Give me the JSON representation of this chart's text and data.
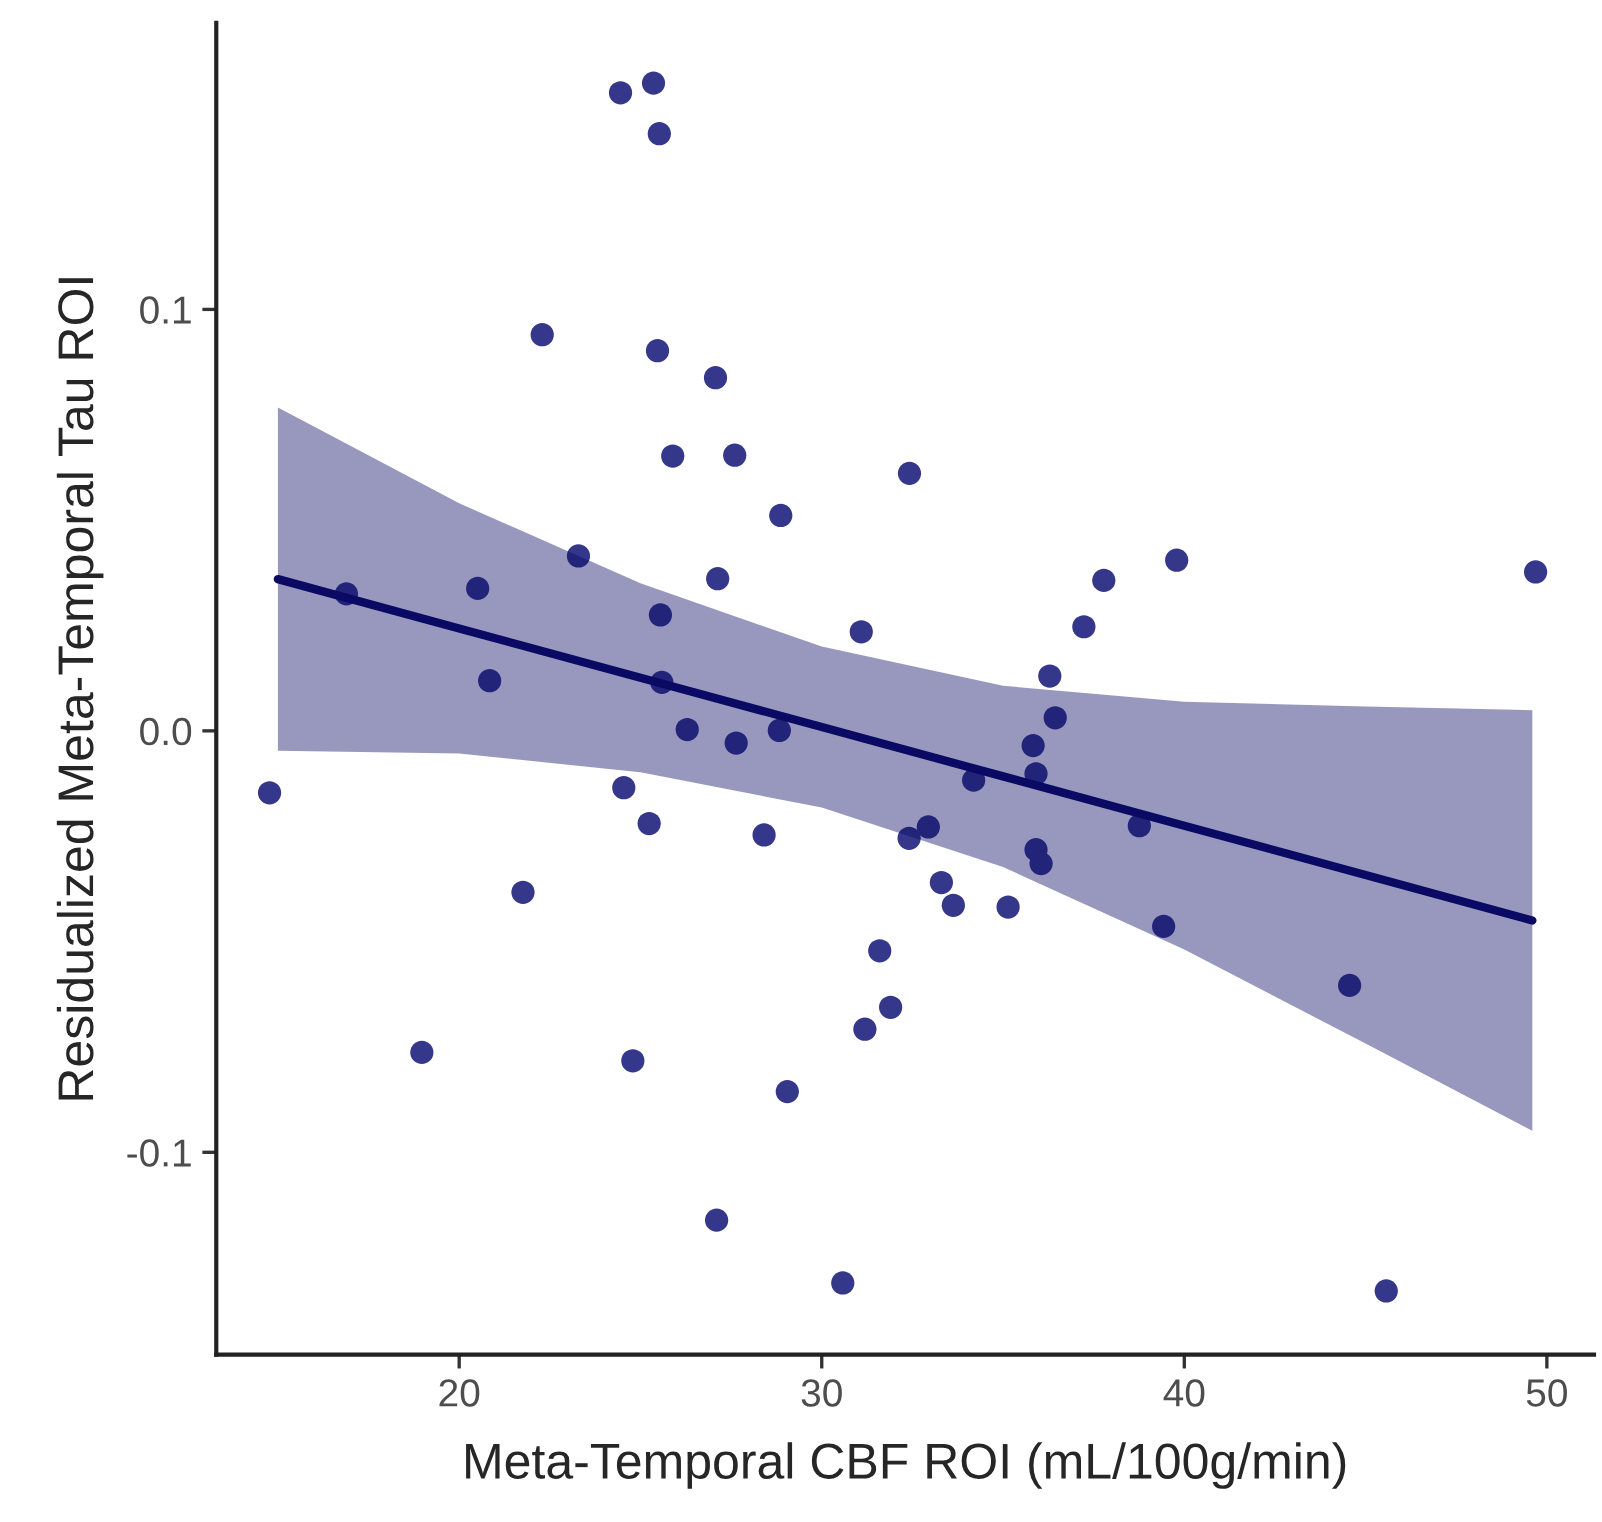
{
  "chart_data": {
    "type": "scatter",
    "xlabel": "Meta-Temporal CBF ROI (mL/100g/min)",
    "ylabel": "Residualized Meta-Temporal Tau ROI",
    "xlim": [
      13.3,
      51.3
    ],
    "xticks": [
      20,
      30,
      40,
      50
    ],
    "ylim": [
      -0.148,
      0.168
    ],
    "yticks": [
      {
        "value": -0.1,
        "label": "-0.1"
      },
      {
        "value": 0,
        "label": "0.0"
      },
      0.1
    ],
    "grid": false,
    "marker": "circle",
    "series": [
      {
        "color": "#35388a",
        "x": [
          24.45,
          25.36,
          25.52,
          22.29,
          25.47,
          27.07,
          25.89,
          27.6,
          28.87,
          23.29,
          20.51,
          16.89,
          27.13,
          25.55,
          31.09,
          20.84,
          25.59,
          26.29,
          27.64,
          28.83,
          14.77,
          24.54,
          25.24,
          28.41,
          21.76,
          31.6,
          31.19,
          18.97,
          24.79,
          29.05,
          27.1,
          30.58,
          32.42,
          39.79,
          49.69,
          37.78,
          37.23,
          36.29,
          36.44,
          35.83,
          35.91,
          34.19,
          32.94,
          32.41,
          35.91,
          36.05,
          38.76,
          33.3,
          33.63,
          35.14,
          39.43,
          44.56,
          31.9,
          45.57
        ],
        "values": [
          0.1514,
          0.1537,
          0.1417,
          0.094,
          0.0902,
          0.0838,
          0.0652,
          0.0654,
          0.0511,
          0.0415,
          0.0338,
          0.0325,
          0.0361,
          0.0275,
          0.0235,
          0.0119,
          0.0115,
          0.0003,
          -0.0029,
          0.0001,
          -0.0147,
          -0.0135,
          -0.022,
          -0.0247,
          -0.0383,
          -0.0522,
          -0.0708,
          -0.0763,
          -0.0783,
          -0.0856,
          -0.1161,
          -0.131,
          0.0611,
          0.0405,
          0.0377,
          0.0357,
          0.0247,
          0.013,
          0.0031,
          -0.0035,
          -0.0102,
          -0.0117,
          -0.0228,
          -0.0255,
          -0.0282,
          -0.0315,
          -0.0225,
          -0.036,
          -0.0414,
          -0.0418,
          -0.0464,
          -0.0604,
          -0.0656,
          -0.1329
        ]
      },
      {
        "type": "line",
        "color": "#0a0a64",
        "line_style": "solid",
        "marker": "none",
        "x": [
          15,
          20,
          25,
          30,
          35,
          40,
          45,
          49.6
        ],
        "values": [
          0.036,
          0.0243,
          0.0126,
          0.0009,
          -0.0108,
          -0.0225,
          -0.0342,
          -0.045
        ],
        "lower": [
          -0.0047,
          -0.0054,
          -0.0098,
          -0.0182,
          -0.0323,
          -0.0519,
          -0.0742,
          -0.0949
        ],
        "upper": [
          0.0767,
          0.054,
          0.035,
          0.02,
          0.0107,
          0.0069,
          0.0058,
          0.0049
        ]
      }
    ]
  }
}
